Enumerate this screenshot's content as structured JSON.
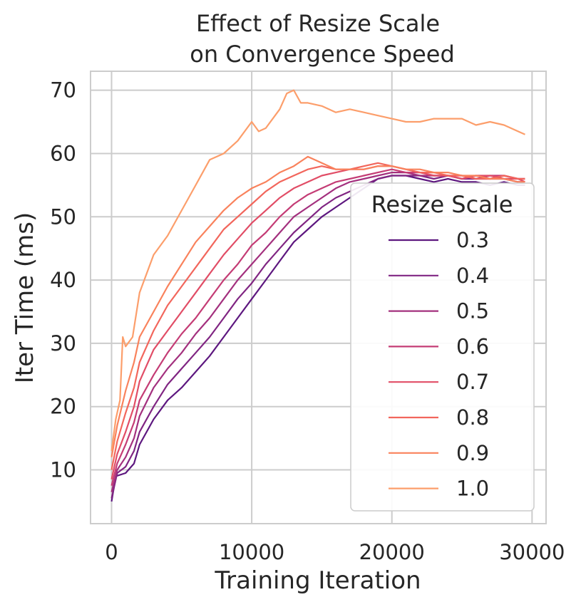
{
  "chart_data": {
    "type": "line",
    "title_lines": [
      "Effect of Resize Scale",
      "on Convergence Speed"
    ],
    "xlabel": "Training Iteration",
    "ylabel": "Iter Time (ms)",
    "xlim": [
      -1500,
      31000
    ],
    "ylim": [
      1.5,
      73
    ],
    "xticks": [
      0,
      10000,
      20000,
      30000
    ],
    "yticks": [
      10,
      20,
      30,
      40,
      50,
      60,
      70
    ],
    "grid": true,
    "legend": {
      "title": "Resize Scale",
      "position": "lower-right"
    },
    "series": [
      {
        "name": "0.3",
        "color": "#5d177f",
        "points": [
          [
            0,
            5
          ],
          [
            300,
            9
          ],
          [
            1000,
            9.5
          ],
          [
            1600,
            11
          ],
          [
            2000,
            14
          ],
          [
            3000,
            18
          ],
          [
            4000,
            21
          ],
          [
            5000,
            23
          ],
          [
            6000,
            25.5
          ],
          [
            7000,
            28
          ],
          [
            8000,
            31
          ],
          [
            9000,
            34
          ],
          [
            10000,
            37
          ],
          [
            11000,
            40
          ],
          [
            12000,
            43
          ],
          [
            13000,
            46
          ],
          [
            14000,
            48
          ],
          [
            15000,
            50
          ],
          [
            16000,
            51.5
          ],
          [
            17000,
            53
          ],
          [
            18000,
            54.5
          ],
          [
            19000,
            56
          ],
          [
            20000,
            56.5
          ],
          [
            21000,
            56.5
          ],
          [
            22000,
            56
          ],
          [
            23000,
            55.5
          ],
          [
            24000,
            56
          ],
          [
            25000,
            55.5
          ],
          [
            26000,
            55.5
          ],
          [
            27000,
            55
          ],
          [
            28000,
            55.5
          ],
          [
            29000,
            55
          ],
          [
            29500,
            55
          ]
        ]
      },
      {
        "name": "0.4",
        "color": "#802582",
        "points": [
          [
            0,
            5.5
          ],
          [
            400,
            9.5
          ],
          [
            1000,
            10.5
          ],
          [
            1600,
            13
          ],
          [
            2000,
            16
          ],
          [
            3000,
            20
          ],
          [
            4000,
            23.5
          ],
          [
            5000,
            26
          ],
          [
            6000,
            28.5
          ],
          [
            7000,
            31
          ],
          [
            8000,
            34
          ],
          [
            9000,
            37
          ],
          [
            10000,
            39.5
          ],
          [
            11000,
            42.5
          ],
          [
            12000,
            45
          ],
          [
            13000,
            47.5
          ],
          [
            14000,
            49.5
          ],
          [
            15000,
            51.5
          ],
          [
            16000,
            53
          ],
          [
            17000,
            54
          ],
          [
            18000,
            55
          ],
          [
            19000,
            56
          ],
          [
            20000,
            56.5
          ],
          [
            21000,
            56.5
          ],
          [
            22000,
            56.5
          ],
          [
            23000,
            56
          ],
          [
            24000,
            56.5
          ],
          [
            25000,
            56
          ],
          [
            26000,
            56
          ],
          [
            27000,
            56
          ],
          [
            28000,
            56
          ],
          [
            29000,
            55.5
          ],
          [
            29500,
            55.5
          ]
        ]
      },
      {
        "name": "0.5",
        "color": "#a3307e",
        "points": [
          [
            0,
            6.5
          ],
          [
            400,
            10
          ],
          [
            1000,
            12
          ],
          [
            1600,
            15
          ],
          [
            2000,
            18.5
          ],
          [
            3000,
            23
          ],
          [
            4000,
            26
          ],
          [
            5000,
            28.5
          ],
          [
            6000,
            31.5
          ],
          [
            7000,
            34
          ],
          [
            8000,
            37
          ],
          [
            9000,
            40
          ],
          [
            10000,
            42.5
          ],
          [
            11000,
            45
          ],
          [
            12000,
            47.5
          ],
          [
            13000,
            50
          ],
          [
            14000,
            51.5
          ],
          [
            15000,
            53
          ],
          [
            16000,
            54.5
          ],
          [
            17000,
            55.5
          ],
          [
            18000,
            56
          ],
          [
            19000,
            56.5
          ],
          [
            20000,
            57
          ],
          [
            21000,
            57
          ],
          [
            22000,
            56.5
          ],
          [
            23000,
            56.5
          ],
          [
            24000,
            56.5
          ],
          [
            25000,
            56
          ],
          [
            26000,
            56.5
          ],
          [
            27000,
            56
          ],
          [
            28000,
            56.5
          ],
          [
            29000,
            56
          ],
          [
            29500,
            56
          ]
        ]
      },
      {
        "name": "0.6",
        "color": "#c43c75",
        "points": [
          [
            0,
            7.5
          ],
          [
            400,
            11
          ],
          [
            1000,
            14
          ],
          [
            1600,
            17.5
          ],
          [
            2000,
            21
          ],
          [
            3000,
            25
          ],
          [
            4000,
            28.5
          ],
          [
            5000,
            31.5
          ],
          [
            6000,
            34
          ],
          [
            7000,
            37
          ],
          [
            8000,
            40
          ],
          [
            9000,
            42.5
          ],
          [
            10000,
            45.5
          ],
          [
            11000,
            47.5
          ],
          [
            12000,
            50
          ],
          [
            13000,
            52
          ],
          [
            14000,
            53.5
          ],
          [
            15000,
            54.5
          ],
          [
            16000,
            55.5
          ],
          [
            17000,
            56
          ],
          [
            18000,
            56.5
          ],
          [
            19000,
            57
          ],
          [
            20000,
            57.5
          ],
          [
            21000,
            57
          ],
          [
            22000,
            57
          ],
          [
            23000,
            56.5
          ],
          [
            24000,
            56.5
          ],
          [
            25000,
            56.5
          ],
          [
            26000,
            56
          ],
          [
            27000,
            56.5
          ],
          [
            28000,
            56.5
          ],
          [
            29000,
            56
          ],
          [
            29500,
            56
          ]
        ]
      },
      {
        "name": "0.7",
        "color": "#e14d66",
        "points": [
          [
            0,
            8.5
          ],
          [
            400,
            12.5
          ],
          [
            1000,
            16
          ],
          [
            1600,
            20
          ],
          [
            2000,
            24
          ],
          [
            3000,
            29
          ],
          [
            4000,
            32
          ],
          [
            5000,
            35
          ],
          [
            6000,
            38
          ],
          [
            7000,
            41
          ],
          [
            8000,
            44
          ],
          [
            9000,
            46.5
          ],
          [
            10000,
            49
          ],
          [
            11000,
            51
          ],
          [
            12000,
            53
          ],
          [
            13000,
            54.5
          ],
          [
            14000,
            55.5
          ],
          [
            15000,
            56.5
          ],
          [
            16000,
            57
          ],
          [
            17000,
            57.5
          ],
          [
            18000,
            57.5
          ],
          [
            19000,
            58
          ],
          [
            20000,
            58
          ],
          [
            21000,
            57.5
          ],
          [
            22000,
            57
          ],
          [
            23000,
            56.5
          ],
          [
            24000,
            56.5
          ],
          [
            25000,
            56
          ],
          [
            26000,
            56.5
          ],
          [
            27000,
            56.5
          ],
          [
            28000,
            56
          ],
          [
            29000,
            56
          ],
          [
            29500,
            55.5
          ]
        ]
      },
      {
        "name": "0.8",
        "color": "#f2665c",
        "points": [
          [
            0,
            10
          ],
          [
            400,
            14.5
          ],
          [
            1000,
            19
          ],
          [
            1600,
            23
          ],
          [
            2000,
            27
          ],
          [
            3000,
            32
          ],
          [
            4000,
            36
          ],
          [
            5000,
            39
          ],
          [
            6000,
            42
          ],
          [
            7000,
            45
          ],
          [
            8000,
            48
          ],
          [
            9000,
            50
          ],
          [
            10000,
            52
          ],
          [
            11000,
            54
          ],
          [
            12000,
            55.5
          ],
          [
            13000,
            56.5
          ],
          [
            14000,
            57.5
          ],
          [
            15000,
            58
          ],
          [
            16000,
            57.5
          ],
          [
            17000,
            57.5
          ],
          [
            18000,
            58
          ],
          [
            19000,
            58.5
          ],
          [
            20000,
            58
          ],
          [
            21000,
            57.5
          ],
          [
            22000,
            57
          ],
          [
            23000,
            57
          ],
          [
            24000,
            56.5
          ],
          [
            25000,
            56.5
          ],
          [
            26000,
            56
          ],
          [
            27000,
            56
          ],
          [
            28000,
            56.5
          ],
          [
            29000,
            56
          ],
          [
            29500,
            56
          ]
        ]
      },
      {
        "name": "0.9",
        "color": "#f9825c",
        "points": [
          [
            0,
            12
          ],
          [
            400,
            17
          ],
          [
            1000,
            22.5
          ],
          [
            1600,
            27
          ],
          [
            2000,
            31
          ],
          [
            3000,
            35
          ],
          [
            4000,
            39
          ],
          [
            5000,
            42.5
          ],
          [
            6000,
            46
          ],
          [
            7000,
            48.5
          ],
          [
            8000,
            51
          ],
          [
            9000,
            53
          ],
          [
            10000,
            54.5
          ],
          [
            11000,
            55.5
          ],
          [
            12000,
            57
          ],
          [
            13000,
            58
          ],
          [
            14000,
            59.5
          ],
          [
            15000,
            58.5
          ],
          [
            16000,
            57.5
          ],
          [
            17000,
            57.5
          ],
          [
            18000,
            57.5
          ],
          [
            19000,
            58
          ],
          [
            20000,
            58
          ],
          [
            21000,
            57.5
          ],
          [
            22000,
            57.5
          ],
          [
            23000,
            57
          ],
          [
            24000,
            57
          ],
          [
            25000,
            56.5
          ],
          [
            26000,
            56.5
          ],
          [
            27000,
            56
          ],
          [
            28000,
            56
          ],
          [
            29000,
            55.5
          ],
          [
            29500,
            55.5
          ]
        ]
      },
      {
        "name": "1.0",
        "color": "#fc9e6b",
        "points": [
          [
            0,
            13
          ],
          [
            300,
            18
          ],
          [
            600,
            21
          ],
          [
            800,
            31
          ],
          [
            1000,
            29.5
          ],
          [
            1500,
            31
          ],
          [
            2000,
            38
          ],
          [
            3000,
            44
          ],
          [
            4000,
            47
          ],
          [
            5000,
            51
          ],
          [
            6000,
            55
          ],
          [
            7000,
            59
          ],
          [
            8000,
            60
          ],
          [
            9000,
            62
          ],
          [
            10000,
            65
          ],
          [
            10500,
            63.5
          ],
          [
            11000,
            64
          ],
          [
            12000,
            67
          ],
          [
            12500,
            69.5
          ],
          [
            13000,
            70
          ],
          [
            13500,
            68
          ],
          [
            14000,
            68
          ],
          [
            15000,
            67.5
          ],
          [
            16000,
            66.5
          ],
          [
            17000,
            67
          ],
          [
            18000,
            66.5
          ],
          [
            19000,
            66
          ],
          [
            20000,
            65.5
          ],
          [
            21000,
            65
          ],
          [
            22000,
            65
          ],
          [
            23000,
            65.5
          ],
          [
            24000,
            65.5
          ],
          [
            25000,
            65.5
          ],
          [
            26000,
            64.5
          ],
          [
            27000,
            65
          ],
          [
            28000,
            64.5
          ],
          [
            29000,
            63.5
          ],
          [
            29500,
            63
          ]
        ]
      }
    ]
  }
}
